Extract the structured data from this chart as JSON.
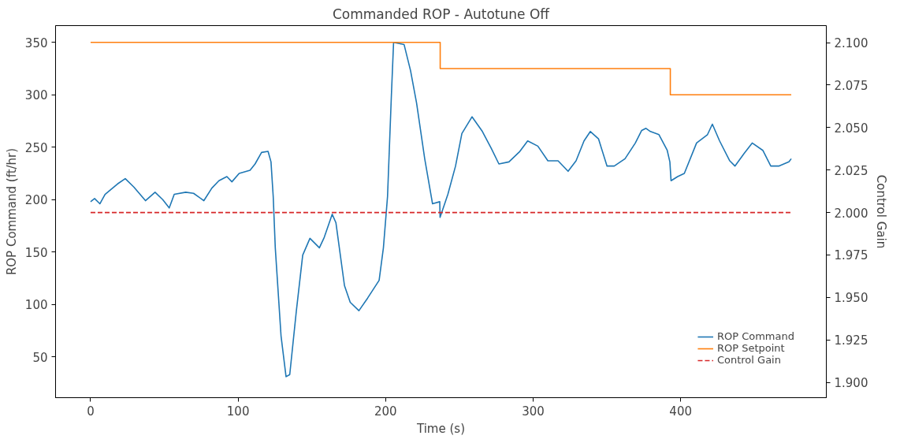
{
  "chart_data": {
    "type": "line",
    "title": "Commanded ROP - Autotune Off",
    "xlabel": "Time (s)",
    "ylabel": "ROP Command (ft/hr)",
    "y2label": "Control Gain",
    "xlim": [
      -23.75,
      498.75
    ],
    "xticks": [
      0,
      100,
      200,
      300,
      400
    ],
    "ylim": [
      11,
      366
    ],
    "yticks": [
      50,
      100,
      150,
      200,
      250,
      300,
      350
    ],
    "y2lim": [
      1.891,
      2.11
    ],
    "y2ticks": [
      {
        "value": 1.9,
        "label": "1.900"
      },
      {
        "value": 1.925,
        "label": "1.925"
      },
      {
        "value": 1.95,
        "label": "1.950"
      },
      {
        "value": 1.975,
        "label": "1.975"
      },
      {
        "value": 2.0,
        "label": "2.000"
      },
      {
        "value": 2.025,
        "label": "2.025"
      },
      {
        "value": 2.05,
        "label": "2.050"
      },
      {
        "value": 2.075,
        "label": "2.075"
      },
      {
        "value": 2.1,
        "label": "2.100"
      }
    ],
    "grid": false,
    "legend": "bottom right",
    "marker": "none",
    "series": [
      {
        "name": "ROP Command",
        "color": "#1f77b4",
        "line_style": "solid",
        "x": [
          0,
          2.7,
          6.3,
          9.8,
          14.1,
          18.3,
          23.5,
          29.3,
          37.2,
          43.7,
          48.9,
          53.3,
          56.7,
          64.5,
          69.8,
          76.8,
          82.2,
          87,
          92.4,
          95.8,
          100.7,
          108.1,
          111.5,
          115.9,
          120.3,
          122.3,
          123.8,
          125.2,
          129.1,
          132.5,
          135,
          139.5,
          143.8,
          148.7,
          155.1,
          158.4,
          163.8,
          166.3,
          172.1,
          176,
          181.9,
          187.8,
          195.6,
          198.5,
          201.3,
          203.9,
          205.4,
          212.5,
          216.9,
          221,
          226.5,
          231.8,
          236.7,
          236.9,
          242.2,
          247.4,
          251.7,
          258.6,
          265.6,
          271.6,
          276.8,
          283.6,
          291,
          296.3,
          303.2,
          310,
          316.9,
          323.7,
          329.1,
          334.5,
          338.8,
          344.3,
          350.1,
          355,
          362.3,
          369.3,
          373.6,
          376.5,
          379.5,
          385.3,
          390.9,
          392.7,
          393.5,
          398,
          402.5,
          410.8,
          418.2,
          421.5,
          426.4,
          433.3,
          436.8,
          443,
          448.5,
          455.7,
          461.1,
          466.5,
          473.4,
          475
        ],
        "values": [
          198,
          201,
          196,
          205,
          210,
          215,
          220,
          212,
          199,
          207,
          200,
          192,
          205,
          207,
          206,
          199,
          211,
          218,
          222,
          217,
          225,
          228,
          234,
          245,
          246,
          236,
          203,
          154,
          70,
          31,
          33,
          94,
          147,
          163,
          154,
          164,
          186,
          178,
          118,
          102,
          94,
          106,
          123,
          154,
          203,
          299,
          350,
          348,
          323,
          292,
          239,
          196,
          198,
          183,
          205,
          232,
          263,
          279,
          265,
          249,
          234,
          236,
          246,
          256,
          251,
          237,
          237,
          227,
          237,
          256,
          265,
          258,
          232,
          232,
          239,
          254,
          266,
          268,
          265,
          262,
          247,
          236,
          218,
          222,
          225,
          254,
          262,
          272,
          256,
          237,
          232,
          244,
          254,
          247,
          232,
          232,
          236,
          239
        ]
      },
      {
        "name": "ROP Setpoint",
        "color": "#ff7f0e",
        "line_style": "solid",
        "x": [
          0,
          237,
          237,
          393,
          393,
          475
        ],
        "values": [
          350,
          350,
          325,
          325,
          300,
          300
        ]
      },
      {
        "name": "Control Gain",
        "color": "#d62728",
        "line_style": "dashed",
        "axis": "y2",
        "x": [
          0,
          475
        ],
        "values": [
          2.0,
          2.0
        ]
      }
    ]
  }
}
